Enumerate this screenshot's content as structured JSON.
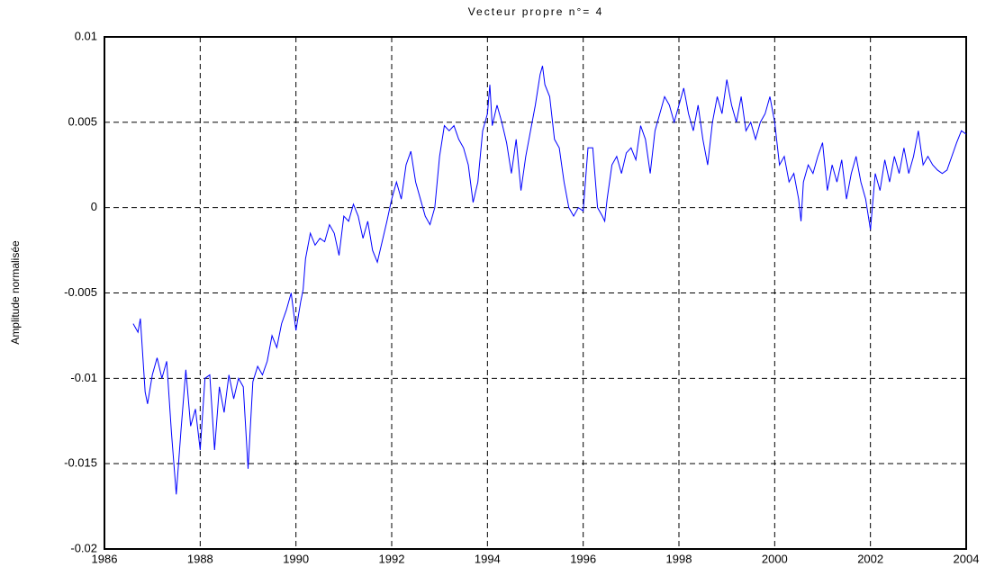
{
  "chart_data": {
    "type": "line",
    "title": "Vecteur propre n°= 4",
    "y_label": "Amplitude normalisée",
    "xlim": [
      1986,
      2004
    ],
    "xticks": [
      1986,
      1988,
      1990,
      1992,
      1994,
      1996,
      1998,
      2000,
      2002,
      2004
    ],
    "ylim": [
      -0.02,
      0.01
    ],
    "yticks": [
      0.01,
      0.005,
      0,
      -0.005,
      -0.01,
      -0.015,
      -0.02
    ],
    "grid": true,
    "x": [
      1986.6,
      1986.7,
      1986.75,
      1986.85,
      1986.9,
      1987.0,
      1987.1,
      1987.2,
      1987.3,
      1987.4,
      1987.5,
      1987.6,
      1987.7,
      1987.8,
      1987.9,
      1988.0,
      1988.1,
      1988.2,
      1988.3,
      1988.4,
      1988.5,
      1988.6,
      1988.7,
      1988.8,
      1988.9,
      1989.0,
      1989.1,
      1989.2,
      1989.3,
      1989.4,
      1989.5,
      1989.6,
      1989.7,
      1989.8,
      1989.9,
      1990.0,
      1990.1,
      1990.15,
      1990.2,
      1990.3,
      1990.4,
      1990.5,
      1990.6,
      1990.7,
      1990.8,
      1990.9,
      1991.0,
      1991.1,
      1991.2,
      1991.3,
      1991.4,
      1991.5,
      1991.6,
      1991.7,
      1991.8,
      1991.9,
      1992.0,
      1992.1,
      1992.2,
      1992.3,
      1992.4,
      1992.5,
      1992.6,
      1992.7,
      1992.8,
      1992.9,
      1993.0,
      1993.1,
      1993.2,
      1993.3,
      1993.4,
      1993.5,
      1993.6,
      1993.7,
      1993.8,
      1993.9,
      1994.0,
      1994.05,
      1994.1,
      1994.2,
      1994.3,
      1994.4,
      1994.5,
      1994.6,
      1994.7,
      1994.8,
      1994.9,
      1995.0,
      1995.1,
      1995.15,
      1995.2,
      1995.3,
      1995.4,
      1995.5,
      1995.6,
      1995.7,
      1995.8,
      1995.9,
      1996.0,
      1996.1,
      1996.2,
      1996.3,
      1996.4,
      1996.45,
      1996.5,
      1996.6,
      1996.7,
      1996.8,
      1996.9,
      1997.0,
      1997.1,
      1997.2,
      1997.3,
      1997.4,
      1997.5,
      1997.6,
      1997.7,
      1997.8,
      1997.9,
      1998.0,
      1998.1,
      1998.2,
      1998.3,
      1998.4,
      1998.5,
      1998.6,
      1998.7,
      1998.8,
      1998.9,
      1999.0,
      1999.1,
      1999.2,
      1999.3,
      1999.4,
      1999.5,
      1999.6,
      1999.7,
      1999.8,
      1999.9,
      2000.0,
      2000.1,
      2000.2,
      2000.3,
      2000.4,
      2000.5,
      2000.55,
      2000.6,
      2000.7,
      2000.8,
      2000.9,
      2001.0,
      2001.1,
      2001.2,
      2001.3,
      2001.4,
      2001.5,
      2001.6,
      2001.7,
      2001.8,
      2001.9,
      2002.0,
      2002.1,
      2002.2,
      2002.3,
      2002.4,
      2002.5,
      2002.6,
      2002.7,
      2002.8,
      2002.9,
      2003.0,
      2003.1,
      2003.2,
      2003.3,
      2003.4,
      2003.5,
      2003.6,
      2003.7,
      2003.8,
      2003.9,
      2004.0
    ],
    "series": [
      {
        "name": "Vecteur propre 4",
        "color": "#0000ff",
        "values": [
          -0.0068,
          -0.0073,
          -0.0065,
          -0.0108,
          -0.0115,
          -0.0098,
          -0.0088,
          -0.01,
          -0.009,
          -0.0132,
          -0.0168,
          -0.013,
          -0.0095,
          -0.0128,
          -0.0118,
          -0.0142,
          -0.01,
          -0.0098,
          -0.0142,
          -0.0105,
          -0.012,
          -0.0098,
          -0.0112,
          -0.01,
          -0.0105,
          -0.0153,
          -0.0102,
          -0.0093,
          -0.0098,
          -0.009,
          -0.0075,
          -0.0082,
          -0.0068,
          -0.006,
          -0.005,
          -0.0072,
          -0.0055,
          -0.0048,
          -0.003,
          -0.0015,
          -0.0022,
          -0.0018,
          -0.002,
          -0.001,
          -0.0015,
          -0.0028,
          -0.0005,
          -0.0008,
          0.0002,
          -0.0005,
          -0.0018,
          -0.0008,
          -0.0025,
          -0.0032,
          -0.002,
          -0.0008,
          0.0005,
          0.0015,
          0.0005,
          0.0025,
          0.0033,
          0.0015,
          0.0005,
          -0.0005,
          -0.001,
          0.0,
          0.003,
          0.0048,
          0.0045,
          0.0048,
          0.004,
          0.0035,
          0.0025,
          0.0003,
          0.0015,
          0.0045,
          0.0055,
          0.0072,
          0.0048,
          0.006,
          0.005,
          0.0038,
          0.002,
          0.004,
          0.001,
          0.003,
          0.0045,
          0.006,
          0.0078,
          0.0083,
          0.0072,
          0.0065,
          0.004,
          0.0035,
          0.0015,
          0.0,
          -0.0005,
          0.0,
          -0.0002,
          0.0035,
          0.0035,
          0.0,
          -0.0005,
          -0.0008,
          0.0005,
          0.0025,
          0.003,
          0.002,
          0.0032,
          0.0035,
          0.0028,
          0.0048,
          0.004,
          0.002,
          0.0045,
          0.0055,
          0.0065,
          0.006,
          0.005,
          0.006,
          0.007,
          0.0055,
          0.0045,
          0.006,
          0.004,
          0.0025,
          0.005,
          0.0065,
          0.0055,
          0.0075,
          0.006,
          0.005,
          0.0065,
          0.0045,
          0.005,
          0.004,
          0.005,
          0.0055,
          0.0065,
          0.005,
          0.0025,
          0.003,
          0.0015,
          0.002,
          0.0005,
          -0.0008,
          0.0015,
          0.0025,
          0.002,
          0.003,
          0.0038,
          0.001,
          0.0025,
          0.0015,
          0.0028,
          0.0005,
          0.002,
          0.003,
          0.0015,
          0.0005,
          -0.0013,
          0.002,
          0.001,
          0.0028,
          0.0015,
          0.003,
          0.002,
          0.0035,
          0.002,
          0.003,
          0.0045,
          0.0025,
          0.003,
          0.0025,
          0.0022,
          0.002,
          0.0022,
          0.003,
          0.0038,
          0.0045,
          0.0043
        ]
      }
    ]
  }
}
